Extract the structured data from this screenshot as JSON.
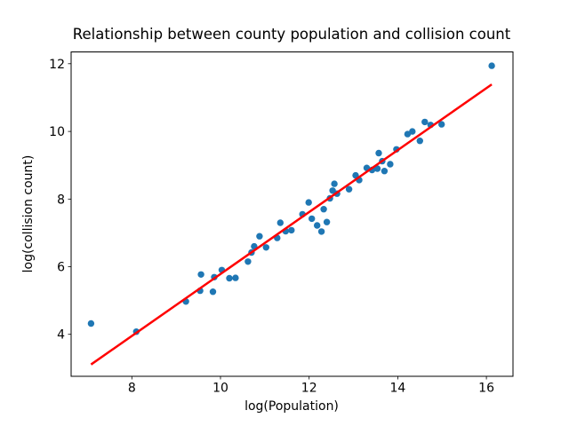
{
  "chart_data": {
    "type": "scatter",
    "title": "Relationship between county population and collision count",
    "xlabel": "log(Population)",
    "ylabel": "log(collision count)",
    "xlim": [
      6.63,
      16.6
    ],
    "ylim": [
      2.76,
      12.35
    ],
    "x_ticks": [
      8,
      10,
      12,
      14,
      16
    ],
    "y_ticks": [
      4,
      6,
      8,
      10,
      12
    ],
    "grid": false,
    "legend": "none",
    "marker_color": "#1f77b4",
    "line_color": "#ff0000",
    "background_color": "#ffffff",
    "points": [
      [
        7.08,
        4.32
      ],
      [
        8.1,
        4.08
      ],
      [
        9.22,
        4.97
      ],
      [
        9.54,
        5.29
      ],
      [
        9.56,
        5.77
      ],
      [
        9.83,
        5.26
      ],
      [
        9.86,
        5.69
      ],
      [
        10.03,
        5.9
      ],
      [
        10.2,
        5.66
      ],
      [
        10.34,
        5.67
      ],
      [
        10.62,
        6.15
      ],
      [
        10.7,
        6.42
      ],
      [
        10.76,
        6.6
      ],
      [
        10.88,
        6.9
      ],
      [
        11.03,
        6.57
      ],
      [
        11.28,
        6.85
      ],
      [
        11.35,
        7.3
      ],
      [
        11.47,
        7.05
      ],
      [
        11.6,
        7.08
      ],
      [
        11.85,
        7.55
      ],
      [
        11.99,
        7.9
      ],
      [
        12.06,
        7.42
      ],
      [
        12.18,
        7.22
      ],
      [
        12.28,
        7.04
      ],
      [
        12.33,
        7.7
      ],
      [
        12.4,
        7.32
      ],
      [
        12.47,
        8.02
      ],
      [
        12.53,
        8.25
      ],
      [
        12.57,
        8.45
      ],
      [
        12.63,
        8.16
      ],
      [
        12.9,
        8.29
      ],
      [
        13.05,
        8.7
      ],
      [
        13.13,
        8.56
      ],
      [
        13.3,
        8.92
      ],
      [
        13.42,
        8.86
      ],
      [
        13.54,
        8.9
      ],
      [
        13.57,
        9.36
      ],
      [
        13.65,
        9.12
      ],
      [
        13.7,
        8.83
      ],
      [
        13.83,
        9.03
      ],
      [
        13.97,
        9.47
      ],
      [
        14.22,
        9.92
      ],
      [
        14.33,
        10.0
      ],
      [
        14.5,
        9.72
      ],
      [
        14.61,
        10.28
      ],
      [
        14.74,
        10.19
      ],
      [
        14.99,
        10.21
      ],
      [
        16.12,
        11.94
      ]
    ],
    "fit_line": {
      "x1": 7.08,
      "y1": 3.11,
      "x2": 16.12,
      "y2": 11.39
    }
  }
}
